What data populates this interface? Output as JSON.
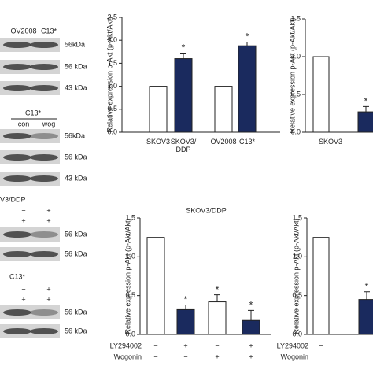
{
  "chart_data": [
    {
      "type": "bar",
      "ylabel": "Relative expression p-Akt (p-Akt/Akt)",
      "categories": [
        "SKOV3",
        "SKOV3/\nDDP",
        "OV2008",
        "C13*"
      ],
      "values": [
        1.0,
        1.6,
        1.0,
        1.88
      ],
      "errors": [
        null,
        0.12,
        null,
        0.08
      ],
      "colors": [
        "#ffffff",
        "#1a2a5e",
        "#ffffff",
        "#1a2a5e"
      ],
      "markers": [
        null,
        "*",
        null,
        "*"
      ],
      "ylim": [
        0,
        2.5
      ],
      "yticks": [
        {
          "value": 0,
          "label": "0.0"
        },
        0.5,
        {
          "value": 1,
          "label": "1.0"
        },
        1.5,
        {
          "value": 2,
          "label": "2.0"
        },
        2.5
      ]
    },
    {
      "type": "bar",
      "ylabel": "Relative expression p-Akt (p-Akt/Akt)",
      "group_label": "SKOV3",
      "categories": [
        null,
        null
      ],
      "values": [
        1.0,
        0.27
      ],
      "errors": [
        null,
        0.07
      ],
      "colors": [
        "#ffffff",
        "#1a2a5e"
      ],
      "markers": [
        null,
        "*"
      ],
      "ylim": [
        0,
        1.5
      ],
      "yticks": [
        {
          "value": 0,
          "label": "0.0"
        },
        0.5,
        {
          "value": 1,
          "label": "1.0"
        },
        1.5
      ]
    },
    {
      "type": "bar",
      "title": "SKOV3/DDP",
      "ylabel": "Relative expression p-Akt (p-Akt/Akt)",
      "categories": [
        null,
        null,
        null,
        null
      ],
      "values": [
        1.25,
        0.32,
        0.42,
        0.18
      ],
      "errors": [
        null,
        0.06,
        0.09,
        0.13
      ],
      "colors": [
        "#ffffff",
        "#1a2a5e",
        "#ffffff",
        "#1a2a5e"
      ],
      "markers": [
        null,
        "*",
        "*",
        "*"
      ],
      "treatments": [
        {
          "name": "LY294002",
          "values": [
            "−",
            "+",
            "−",
            "+"
          ]
        },
        {
          "name": "Wogonin",
          "values": [
            "−",
            "−",
            "+",
            "+"
          ]
        }
      ],
      "ylim": [
        0,
        1.5
      ],
      "yticks": [
        {
          "value": 0,
          "label": "0.0"
        },
        0.5,
        {
          "value": 1,
          "label": "1.0"
        },
        1.5
      ]
    },
    {
      "type": "bar",
      "ylabel": "Relative expression p-Akt (p-Akt/Akt)",
      "categories": [
        null,
        null
      ],
      "values": [
        1.25,
        0.45
      ],
      "errors": [
        null,
        0.1
      ],
      "colors": [
        "#ffffff",
        "#1a2a5e"
      ],
      "markers": [
        null,
        "*"
      ],
      "treatments": [
        {
          "name": "LY294002",
          "values": [
            "−",
            null
          ]
        },
        {
          "name": "Wogonin",
          "values": [
            null,
            null
          ]
        }
      ],
      "ylim": [
        0,
        1.5
      ],
      "yticks": [
        {
          "value": 0,
          "label": "0.0"
        },
        0.5,
        {
          "value": 1,
          "label": "1.0"
        },
        1.5
      ]
    }
  ],
  "blots": [
    {
      "lanes": [
        "OV2008",
        "C13*"
      ],
      "sizes": [
        "56kDa",
        "56 kDa",
        "43 kDa"
      ]
    },
    {
      "title": "C13*",
      "lanes": [
        "con",
        "wog"
      ],
      "sizes": [
        "56kDa",
        "56 kDa",
        "43 kDa"
      ]
    },
    {
      "title": "V3/DDP",
      "signs": [
        [
          "−",
          "+"
        ],
        [
          "+",
          "+"
        ]
      ],
      "sizes": [
        "56 kDa",
        "56 kDa"
      ]
    },
    {
      "title": "C13*",
      "signs": [
        [
          "−",
          "+"
        ],
        [
          "+",
          "+"
        ]
      ],
      "sizes": [
        "56 kDa",
        "56 kDa"
      ]
    }
  ]
}
